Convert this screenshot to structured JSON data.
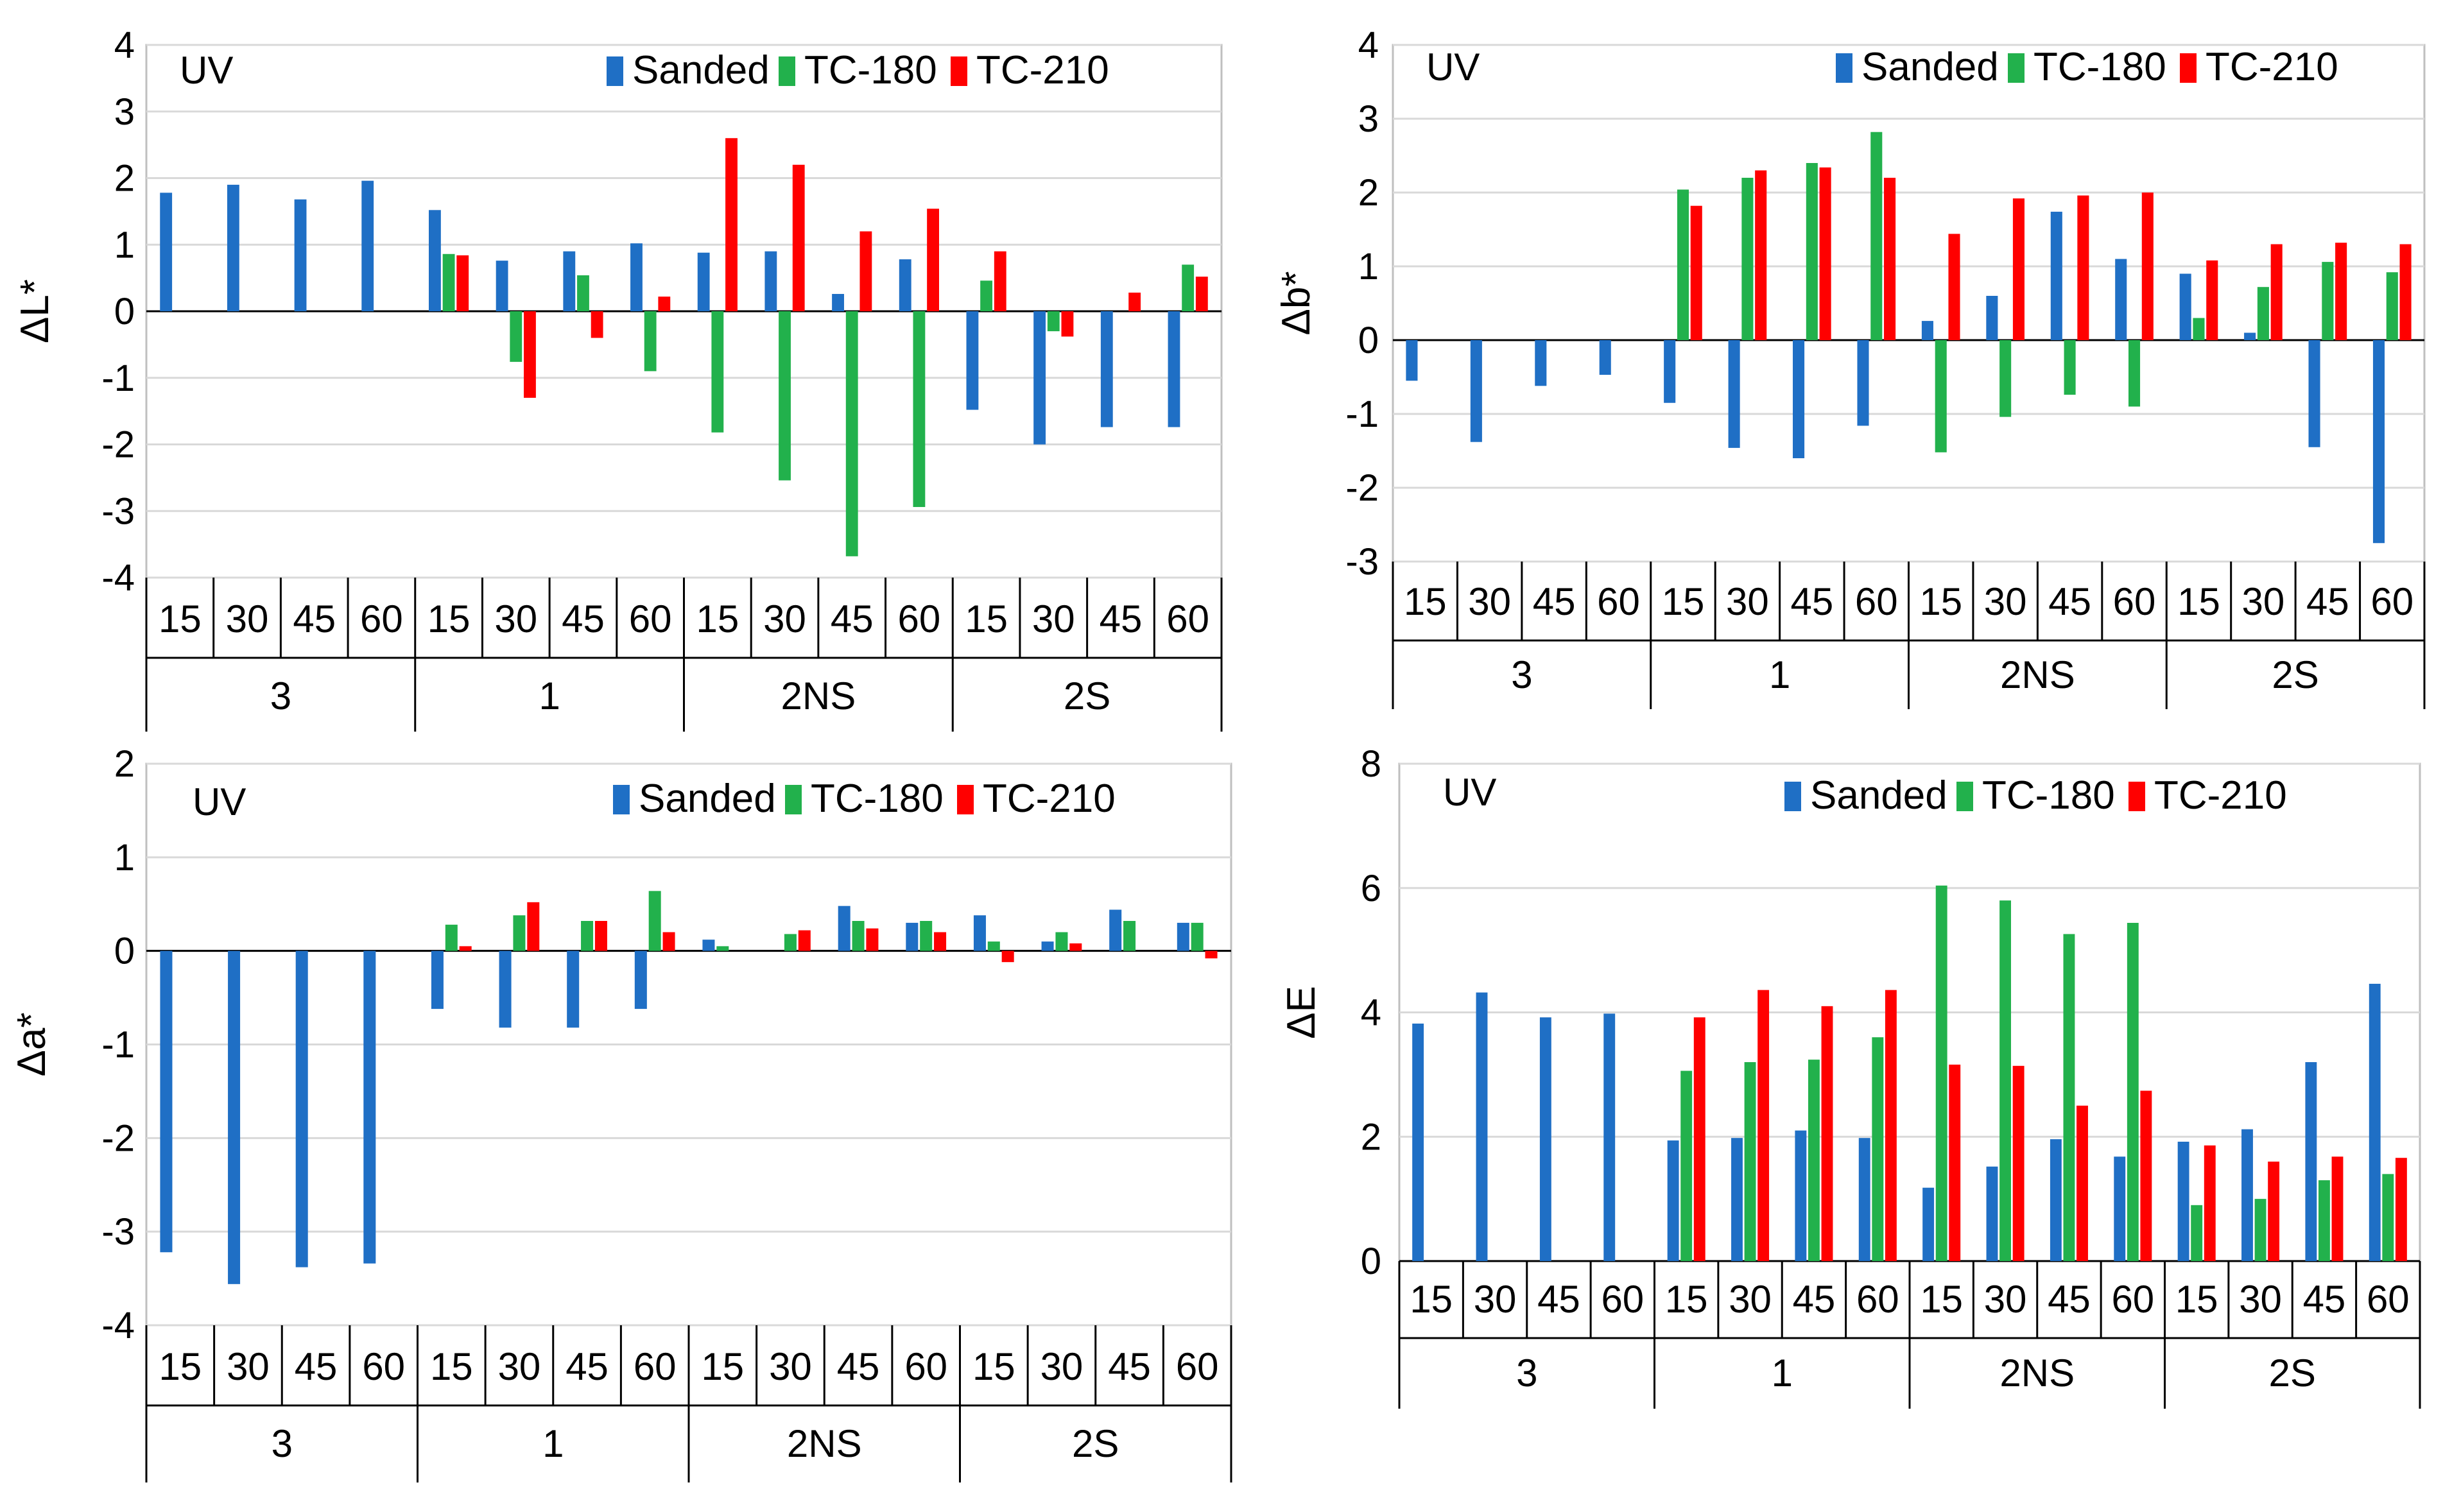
{
  "chart_data": [
    {
      "type": "bar",
      "id": "dL",
      "ylabel": "ΔL*",
      "label": "UV",
      "ylim": [
        -4,
        4
      ],
      "yticks": [
        -4,
        -3,
        -2,
        -1,
        0,
        1,
        2,
        3,
        4
      ],
      "groups": [
        "3",
        "1",
        "2NS",
        "2S"
      ],
      "subcategories": [
        "15",
        "30",
        "45",
        "60"
      ],
      "series": [
        {
          "name": "Sanded",
          "color": "#1f6fc5",
          "values": [
            1.78,
            1.9,
            1.68,
            1.96,
            1.52,
            0.76,
            0.9,
            1.02,
            0.88,
            0.9,
            0.26,
            0.78,
            -1.48,
            -2.0,
            -1.74,
            -1.74
          ]
        },
        {
          "name": "TC-180",
          "color": "#22b14c",
          "values": [
            null,
            null,
            null,
            null,
            0.86,
            -0.76,
            0.54,
            -0.9,
            -1.82,
            -2.54,
            -3.68,
            -2.94,
            0.46,
            -0.3,
            null,
            0.7
          ]
        },
        {
          "name": "TC-210",
          "color": "#ff0000",
          "values": [
            null,
            null,
            null,
            null,
            0.84,
            -1.3,
            -0.4,
            0.22,
            2.6,
            2.2,
            1.2,
            1.54,
            0.9,
            -0.38,
            0.28,
            0.52
          ]
        }
      ]
    },
    {
      "type": "bar",
      "id": "db",
      "ylabel": "Δb*",
      "label": "UV",
      "ylim": [
        -3,
        4
      ],
      "yticks": [
        -3,
        -2,
        -1,
        0,
        1,
        2,
        3,
        4
      ],
      "groups": [
        "3",
        "1",
        "2NS",
        "2S"
      ],
      "subcategories": [
        "15",
        "30",
        "45",
        "60"
      ],
      "series": [
        {
          "name": "Sanded",
          "color": "#1f6fc5",
          "values": [
            -0.55,
            -1.38,
            -0.62,
            -0.47,
            -0.85,
            -1.46,
            -1.6,
            -1.16,
            0.26,
            0.6,
            1.74,
            1.1,
            0.9,
            0.1,
            -1.45,
            -2.75
          ]
        },
        {
          "name": "TC-180",
          "color": "#22b14c",
          "values": [
            null,
            null,
            null,
            null,
            2.04,
            2.2,
            2.4,
            2.82,
            -1.52,
            -1.04,
            -0.74,
            -0.9,
            0.3,
            0.72,
            1.06,
            0.92
          ]
        },
        {
          "name": "TC-210",
          "color": "#ff0000",
          "values": [
            null,
            null,
            null,
            null,
            1.82,
            2.3,
            2.34,
            2.2,
            1.44,
            1.92,
            1.96,
            2.0,
            1.08,
            1.3,
            1.32,
            1.3
          ]
        }
      ]
    },
    {
      "type": "bar",
      "id": "da",
      "ylabel": "Δa*",
      "label": "UV",
      "ylim": [
        -4,
        2
      ],
      "yticks": [
        -4,
        -3,
        -2,
        -1,
        0,
        1,
        2
      ],
      "groups": [
        "3",
        "1",
        "2NS",
        "2S"
      ],
      "subcategories": [
        "15",
        "30",
        "45",
        "60"
      ],
      "series": [
        {
          "name": "Sanded",
          "color": "#1f6fc5",
          "values": [
            -3.22,
            -3.56,
            -3.38,
            -3.34,
            -0.62,
            -0.82,
            -0.82,
            -0.62,
            0.12,
            null,
            0.48,
            0.3,
            0.38,
            0.1,
            0.44,
            0.3
          ]
        },
        {
          "name": "TC-180",
          "color": "#22b14c",
          "values": [
            null,
            null,
            null,
            null,
            0.28,
            0.38,
            0.32,
            0.64,
            0.05,
            0.18,
            0.32,
            0.32,
            0.1,
            0.2,
            0.32,
            0.3
          ]
        },
        {
          "name": "TC-210",
          "color": "#ff0000",
          "values": [
            null,
            null,
            null,
            null,
            0.05,
            0.52,
            0.32,
            0.2,
            null,
            0.22,
            0.24,
            0.2,
            -0.12,
            0.08,
            null,
            -0.08
          ]
        }
      ]
    },
    {
      "type": "bar",
      "id": "dE",
      "ylabel": "ΔE",
      "label": "UV",
      "ylim": [
        0,
        8
      ],
      "yticks": [
        0,
        2,
        4,
        6,
        8
      ],
      "groups": [
        "3",
        "1",
        "2NS",
        "2S"
      ],
      "subcategories": [
        "15",
        "30",
        "45",
        "60"
      ],
      "series": [
        {
          "name": "Sanded",
          "color": "#1f6fc5",
          "values": [
            3.82,
            4.32,
            3.92,
            3.98,
            1.94,
            1.98,
            2.1,
            1.98,
            1.18,
            1.52,
            1.96,
            1.68,
            1.92,
            2.12,
            3.2,
            4.46
          ]
        },
        {
          "name": "TC-180",
          "color": "#22b14c",
          "values": [
            null,
            null,
            null,
            null,
            3.06,
            3.2,
            3.24,
            3.6,
            6.04,
            5.8,
            5.26,
            5.44,
            0.9,
            1.0,
            1.3,
            1.4
          ]
        },
        {
          "name": "TC-210",
          "color": "#ff0000",
          "values": [
            null,
            null,
            null,
            null,
            3.92,
            4.36,
            4.1,
            4.36,
            3.16,
            3.14,
            2.5,
            2.74,
            1.86,
            1.6,
            1.68,
            1.66
          ]
        }
      ]
    }
  ]
}
